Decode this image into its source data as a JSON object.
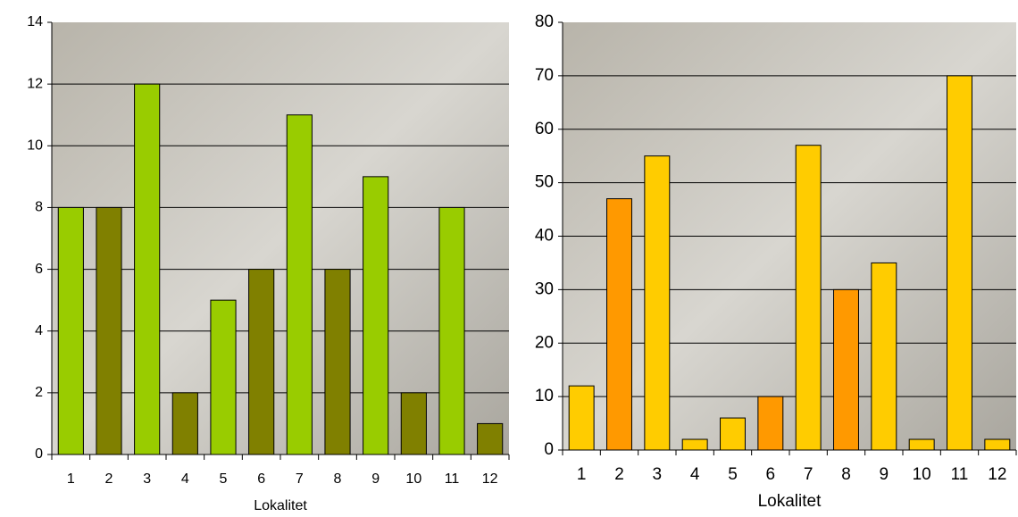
{
  "chart_data": [
    {
      "type": "bar",
      "x_label": "Lokalitet",
      "categories": [
        "1",
        "2",
        "3",
        "4",
        "5",
        "6",
        "7",
        "8",
        "9",
        "10",
        "11",
        "12"
      ],
      "values": [
        8,
        8,
        12,
        2,
        5,
        6,
        11,
        6,
        9,
        2,
        8,
        1
      ],
      "colors": [
        "#99cc00",
        "#808000",
        "#99cc00",
        "#808000",
        "#99cc00",
        "#808000",
        "#99cc00",
        "#808000",
        "#99cc00",
        "#808000",
        "#99cc00",
        "#808000"
      ],
      "ylim": [
        0,
        14
      ],
      "yticks": [
        0,
        2,
        4,
        6,
        8,
        10,
        12,
        14
      ],
      "grid": true
    },
    {
      "type": "bar",
      "x_label": "Lokalitet",
      "categories": [
        "1",
        "2",
        "3",
        "4",
        "5",
        "6",
        "7",
        "8",
        "9",
        "10",
        "11",
        "12"
      ],
      "values": [
        12,
        47,
        55,
        2,
        6,
        10,
        57,
        30,
        35,
        2,
        70,
        2
      ],
      "colors": [
        "#ffcc00",
        "#ff9900",
        "#ffcc00",
        "#ffcc00",
        "#ffcc00",
        "#ff9900",
        "#ffcc00",
        "#ff9900",
        "#ffcc00",
        "#ffcc00",
        "#ffcc00",
        "#ffcc00"
      ],
      "ylim": [
        0,
        80
      ],
      "yticks": [
        0,
        10,
        20,
        30,
        40,
        50,
        60,
        70,
        80
      ],
      "grid": true
    }
  ]
}
